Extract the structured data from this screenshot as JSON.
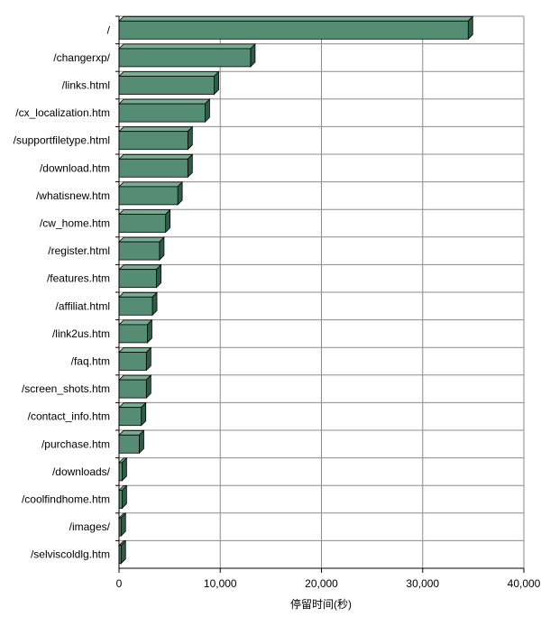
{
  "chart_data": {
    "type": "bar",
    "orientation": "horizontal",
    "style": "3d",
    "categories": [
      "/",
      "/changerxp/",
      "/links.html",
      "/cx_localization.htm",
      "/supportfiletype.html",
      "/download.htm",
      "/whatisnew.htm",
      "/cw_home.htm",
      "/register.html",
      "/features.htm",
      "/affiliat.html",
      "/link2us.htm",
      "/faq.htm",
      "/screen_shots.htm",
      "/contact_info.htm",
      "/purchase.htm",
      "/downloads/",
      "/coolfindhome.htm",
      "/images/",
      "/selviscoldlg.htm"
    ],
    "values": [
      34500,
      13000,
      9400,
      8500,
      6800,
      6800,
      5800,
      4600,
      4000,
      3700,
      3300,
      2800,
      2700,
      2700,
      2200,
      2000,
      300,
      300,
      200,
      200
    ],
    "title": "",
    "xlabel": "停留时间(秒)",
    "ylabel": "",
    "xlim": [
      0,
      40000
    ],
    "x_ticks": [
      0,
      10000,
      20000,
      30000,
      40000
    ],
    "x_tick_labels": [
      "0",
      "10,000",
      "20,000",
      "30,000",
      "40,000"
    ],
    "grid": "vertical",
    "legend": "none",
    "colors": {
      "bar_front": "#548d73",
      "bar_top": "#7aab93",
      "bar_side": "#2f5c47",
      "bar_outline": "#000000",
      "grid": "#8c8c8c",
      "axis": "#000000",
      "text": "#000000"
    }
  }
}
